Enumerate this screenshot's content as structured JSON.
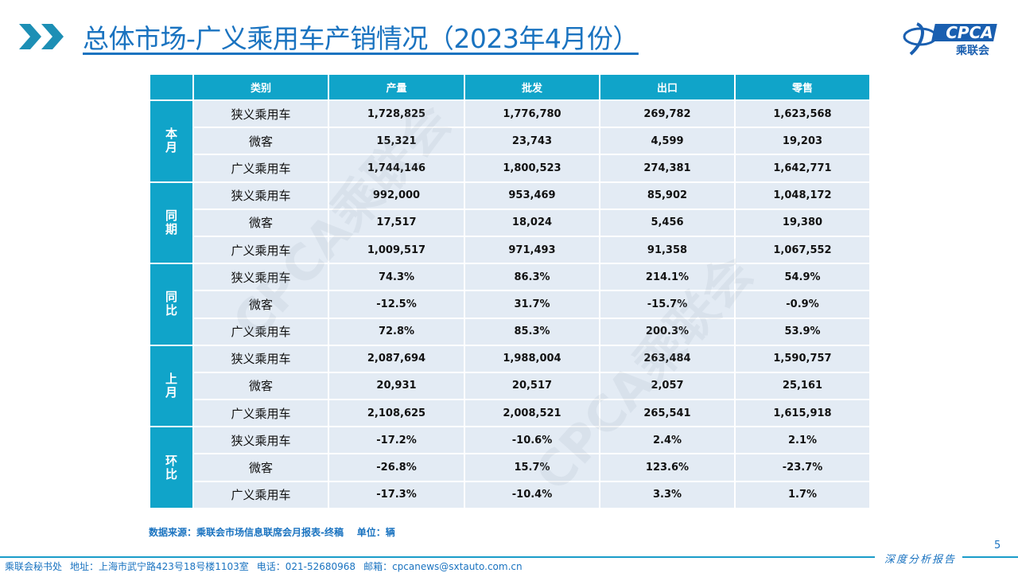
{
  "header": {
    "title": "总体市场-广义乘用车产销情况（2023年4月份）",
    "logo_text": "CPCA",
    "logo_subtext": "乘联会"
  },
  "watermarks": [
    "CPCA乘联会",
    "CPCA乘联会"
  ],
  "table": {
    "headers": [
      "类别",
      "产量",
      "批发",
      "出口",
      "零售"
    ],
    "groups": [
      {
        "label": "本月",
        "rows": [
          [
            "狭义乘用车",
            "1,728,825",
            "1,776,780",
            "269,782",
            "1,623,568"
          ],
          [
            "微客",
            "15,321",
            "23,743",
            "4,599",
            "19,203"
          ],
          [
            "广义乘用车",
            "1,744,146",
            "1,800,523",
            "274,381",
            "1,642,771"
          ]
        ]
      },
      {
        "label": "同期",
        "rows": [
          [
            "狭义乘用车",
            "992,000",
            "953,469",
            "85,902",
            "1,048,172"
          ],
          [
            "微客",
            "17,517",
            "18,024",
            "5,456",
            "19,380"
          ],
          [
            "广义乘用车",
            "1,009,517",
            "971,493",
            "91,358",
            "1,067,552"
          ]
        ]
      },
      {
        "label": "同比",
        "rows": [
          [
            "狭义乘用车",
            "74.3%",
            "86.3%",
            "214.1%",
            "54.9%"
          ],
          [
            "微客",
            "-12.5%",
            "31.7%",
            "-15.7%",
            "-0.9%"
          ],
          [
            "广义乘用车",
            "72.8%",
            "85.3%",
            "200.3%",
            "53.9%"
          ]
        ]
      },
      {
        "label": "上月",
        "rows": [
          [
            "狭义乘用车",
            "2,087,694",
            "1,988,004",
            "263,484",
            "1,590,757"
          ],
          [
            "微客",
            "20,931",
            "20,517",
            "2,057",
            "25,161"
          ],
          [
            "广义乘用车",
            "2,108,625",
            "2,008,521",
            "265,541",
            "1,615,918"
          ]
        ]
      },
      {
        "label": "环比",
        "rows": [
          [
            "狭义乘用车",
            "-17.2%",
            "-10.6%",
            "2.4%",
            "2.1%"
          ],
          [
            "微客",
            "-26.8%",
            "15.7%",
            "123.6%",
            "-23.7%"
          ],
          [
            "广义乘用车",
            "-17.3%",
            "-10.4%",
            "3.3%",
            "1.7%"
          ]
        ]
      }
    ]
  },
  "source": {
    "text": "数据来源：乘联会市场信息联席会月报表-终稿",
    "unit": "单位：辆"
  },
  "footer": {
    "secretariat": "乘联会秘书处",
    "address": "地址：上海市武宁路423号18号楼1103室",
    "phone": "电话：021-52680968",
    "email": "邮箱：cpcanews@sxtauto.com.cn",
    "report_type": "深度分析报告",
    "page_number": "5"
  }
}
